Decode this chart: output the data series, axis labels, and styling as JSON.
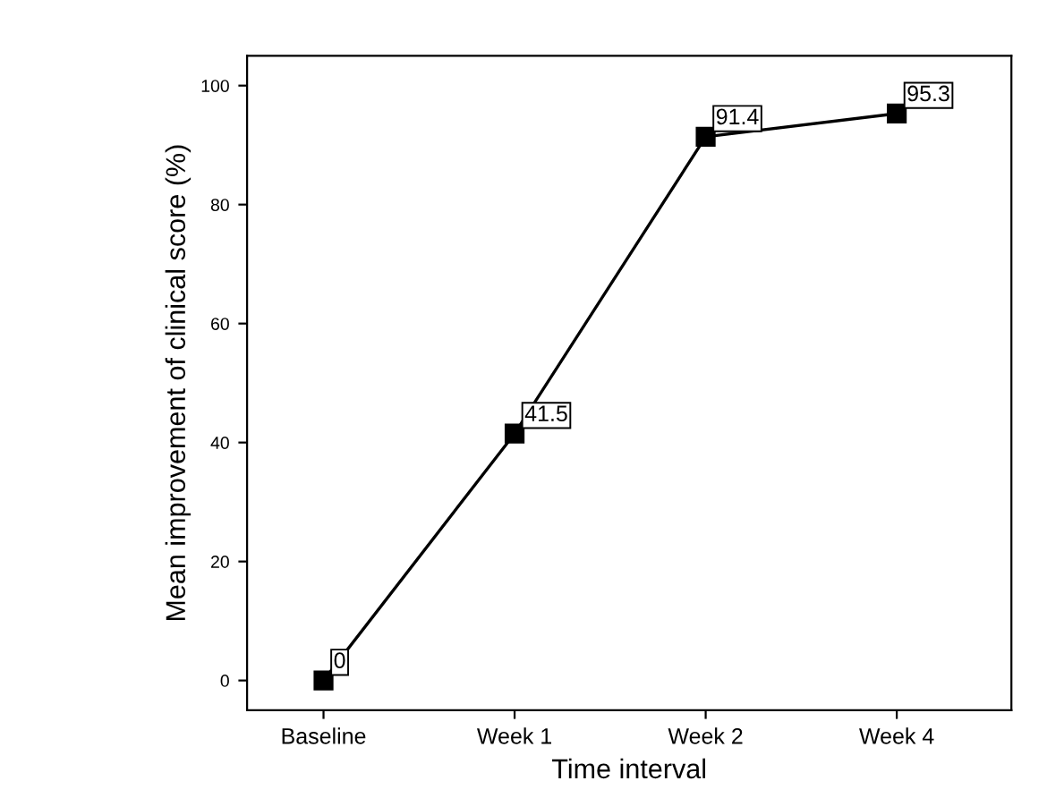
{
  "chart_data": {
    "type": "line",
    "xlabel": "Time interval",
    "ylabel": "Mean improvement of clinical score (%)",
    "categories": [
      "Baseline",
      "Week 1",
      "Week 2",
      "Week 4"
    ],
    "values": [
      0,
      41.5,
      91.4,
      95.3
    ],
    "color": "#000000",
    "ylim": [
      -5,
      105
    ],
    "yticks": [
      0,
      20,
      40,
      60,
      80,
      100
    ],
    "marker": "square",
    "line_style": "solid",
    "data_labels": true,
    "grid": false,
    "legend": false
  }
}
